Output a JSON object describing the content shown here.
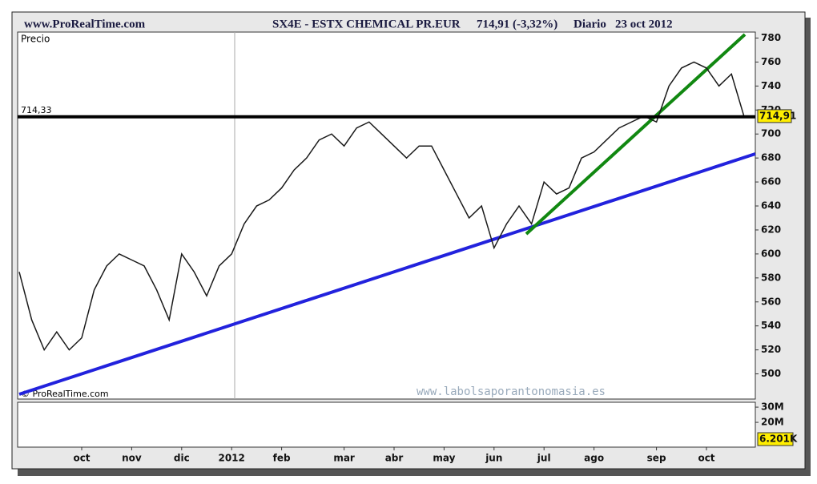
{
  "header": {
    "site": "www.ProRealTime.com",
    "instrument": "SX4E - ESTX CHEMICAL PR.EUR",
    "quote": "714,91 (-3,32%)",
    "period": "Diario",
    "date": "23 oct 2012"
  },
  "chart_data": {
    "type": "line",
    "y_label": "Precio",
    "copyright": "© ProRealTime.com",
    "watermark": "www.labolsaporantonomasia.es",
    "color": "#1a1a1a",
    "categories": [
      null,
      null,
      null,
      null,
      null,
      "oct",
      null,
      null,
      null,
      "nov",
      null,
      null,
      null,
      "dic",
      null,
      null,
      null,
      "2012",
      null,
      null,
      null,
      "feb",
      null,
      null,
      null,
      null,
      "mar",
      null,
      null,
      null,
      "abr",
      null,
      null,
      null,
      "may",
      null,
      null,
      null,
      "jun",
      null,
      null,
      null,
      "jul",
      null,
      null,
      null,
      "ago",
      null,
      null,
      null,
      null,
      "sep",
      null,
      null,
      null,
      "oct",
      null,
      null,
      null
    ],
    "values": [
      585,
      545,
      520,
      535,
      520,
      530,
      570,
      590,
      600,
      595,
      590,
      570,
      545,
      600,
      585,
      565,
      590,
      600,
      625,
      640,
      645,
      655,
      670,
      680,
      695,
      700,
      690,
      705,
      710,
      700,
      690,
      680,
      690,
      690,
      670,
      650,
      630,
      640,
      605,
      625,
      640,
      625,
      660,
      650,
      655,
      680,
      685,
      695,
      705,
      710,
      715,
      710,
      740,
      755,
      760,
      755,
      740,
      750,
      714.91
    ],
    "last_value": {
      "value": 714.91,
      "label": "714,91"
    },
    "support": {
      "value": 714.33,
      "label": "714,33"
    },
    "ylim": [
      479,
      785
    ],
    "yticks": [
      500,
      520,
      540,
      560,
      580,
      600,
      620,
      640,
      660,
      680,
      700,
      720,
      740,
      760,
      780
    ],
    "volume": {
      "ylim": [
        3700000,
        33200000
      ],
      "yticks": [
        {
          "value": 30000000,
          "label": "30M"
        },
        {
          "value": 20000000,
          "label": "20M"
        }
      ],
      "last": {
        "value": 6201,
        "label": "6.201K"
      }
    }
  }
}
